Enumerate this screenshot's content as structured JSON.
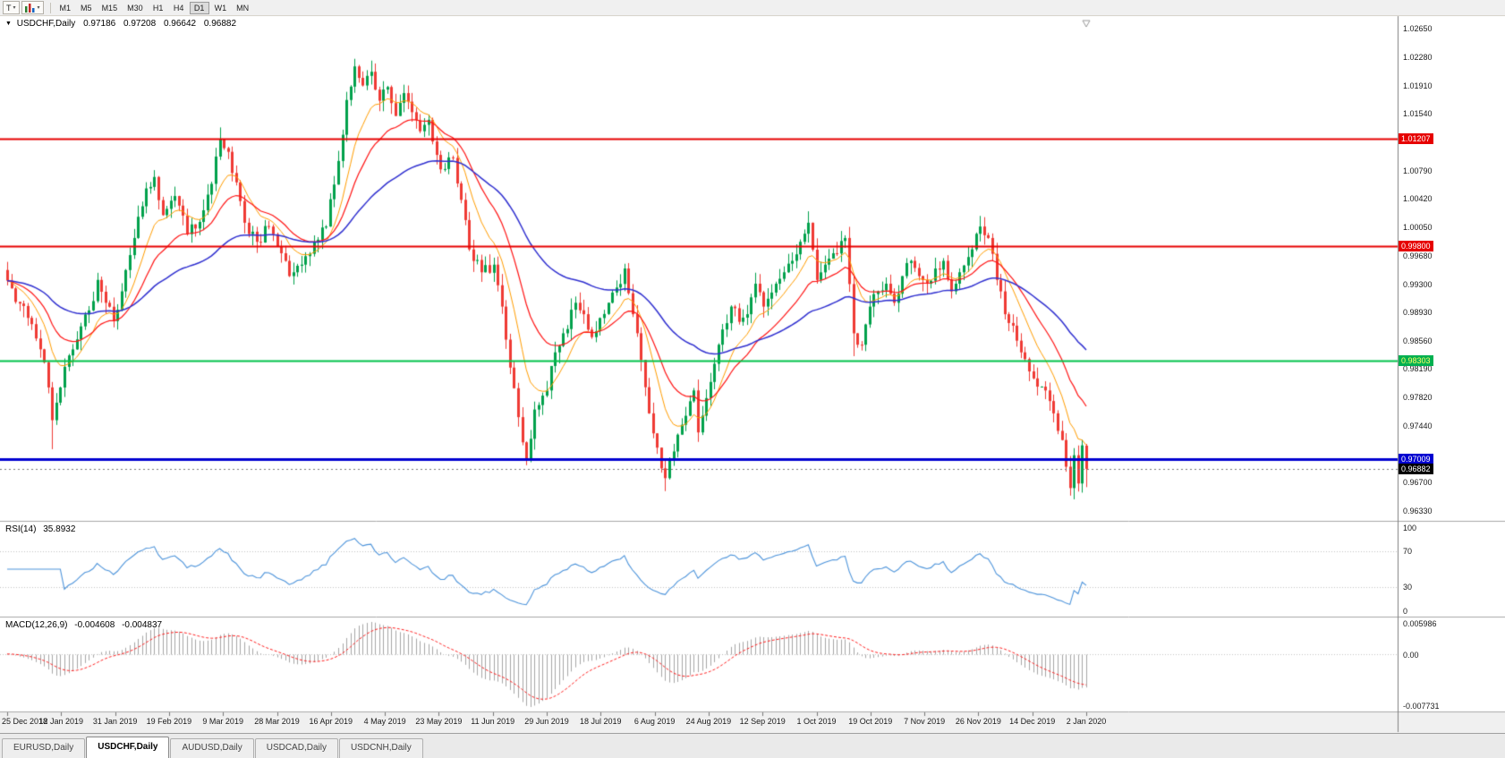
{
  "window": {
    "background": "#f0f0f0",
    "plot_background": "#ffffff"
  },
  "toolbar": {
    "templates_button_label": "T",
    "chevron_down": "▾",
    "timeframes": [
      "M1",
      "M5",
      "M15",
      "M30",
      "H1",
      "H4",
      "D1",
      "W1",
      "MN"
    ],
    "active_timeframe": "D1"
  },
  "chart": {
    "header": {
      "marker": "▼",
      "symbol": "USDCHF,Daily",
      "open": "0.97186",
      "high": "0.97208",
      "low": "0.96642",
      "close": "0.96882"
    },
    "price_axis_labels": [
      "1.02650",
      "1.02280",
      "1.01910",
      "1.01540",
      "1.00790",
      "1.00420",
      "1.00050",
      "0.99680",
      "0.99300",
      "0.98930",
      "0.98560",
      "0.98190",
      "0.97820",
      "0.97440",
      "0.96700",
      "0.96330"
    ],
    "price_tags": [
      {
        "value": "1.01207",
        "price": 1.01207,
        "bg": "#e60000",
        "text": "#ffffff",
        "line_color": "#e60000",
        "line_width": 2
      },
      {
        "value": "0.99800",
        "price": 0.998,
        "bg": "#e60000",
        "text": "#ffffff",
        "line_color": "#e60000",
        "line_width": 2
      },
      {
        "value": "0.98303",
        "price": 0.98303,
        "bg": "#00b050",
        "text": "#ffff66",
        "line_color": "#00c24a",
        "line_width": 2
      },
      {
        "value": "0.97009",
        "price": 0.97009,
        "bg": "#0000d0",
        "text": "#ffffff",
        "line_color": "#0000d0",
        "line_width": 3
      },
      {
        "value": "0.96882",
        "price": 0.96882,
        "bg": "#000000",
        "text": "#ffffff",
        "line_color": "#777777",
        "line_width": 1,
        "current": true
      }
    ],
    "date_axis_labels": [
      "25 Dec 2018",
      "12 Jan 2019",
      "31 Jan 2019",
      "19 Feb 2019",
      "9 Mar 2019",
      "28 Mar 2019",
      "16 Apr 2019",
      "4 May 2019",
      "23 May 2019",
      "11 Jun 2019",
      "29 Jun 2019",
      "18 Jul 2019",
      "6 Aug 2019",
      "24 Aug 2019",
      "12 Sep 2019",
      "1 Oct 2019",
      "19 Oct 2019",
      "7 Nov 2019",
      "26 Nov 2019",
      "14 Dec 2019",
      "2 Jan 2020"
    ]
  },
  "indicators": {
    "rsi": {
      "label": "RSI(14)",
      "value": "35.8932",
      "period": 14,
      "levels": [
        100,
        70,
        30,
        0
      ],
      "level_lines": [
        70,
        30
      ],
      "color": "#4d94db"
    },
    "macd": {
      "label": "MACD(12,26,9)",
      "macd_value": "-0.004608",
      "signal_value": "-0.004837",
      "fast": 12,
      "slow": 26,
      "signal": 9,
      "axis_labels": [
        "0.005986",
        "0.00",
        "-0.007731"
      ],
      "histogram_color": "#a6a6a6",
      "signal_color": "#ff2020"
    }
  },
  "chart_data": {
    "type": "candlestick",
    "title": "USDCHF Daily",
    "bars": 265,
    "price_min": 0.962,
    "price_max": 1.0282,
    "sr_levels": [
      1.01207,
      0.998,
      0.98303,
      0.97009
    ],
    "current_price": 0.96882,
    "last_bar": {
      "open": 0.97186,
      "high": 0.97208,
      "low": 0.96642,
      "close": 0.96882
    },
    "colors": {
      "up": "#00a14b",
      "down": "#ef3a34"
    },
    "moving_averages": [
      {
        "period": 10,
        "color": "#ff9d00",
        "width": 1
      },
      {
        "period": 21,
        "color": "#ff1414",
        "width": 1.2
      },
      {
        "period": 55,
        "color": "#3030d0",
        "width": 1.5
      }
    ],
    "seed": 20190101,
    "anchors": [
      [
        0,
        0.9935
      ],
      [
        3,
        0.9905
      ],
      [
        6,
        0.9878
      ],
      [
        8,
        0.9845
      ],
      [
        10,
        0.9795
      ],
      [
        11,
        0.9752
      ],
      [
        12,
        0.9775
      ],
      [
        14,
        0.9822
      ],
      [
        17,
        0.9858
      ],
      [
        20,
        0.9896
      ],
      [
        22,
        0.9936
      ],
      [
        24,
        0.9906
      ],
      [
        26,
        0.9882
      ],
      [
        28,
        0.9921
      ],
      [
        31,
        0.9991
      ],
      [
        34,
        1.0056
      ],
      [
        36,
        1.0071
      ],
      [
        38,
        1.0021
      ],
      [
        41,
        1.0046
      ],
      [
        44,
        0.9996
      ],
      [
        47,
        1.0012
      ],
      [
        50,
        1.0062
      ],
      [
        52,
        1.0121
      ],
      [
        54,
        1.0104
      ],
      [
        56,
        1.0064
      ],
      [
        58,
        1.0011
      ],
      [
        61,
        0.9986
      ],
      [
        64,
        1.0006
      ],
      [
        67,
        0.9971
      ],
      [
        69,
        0.9941
      ],
      [
        72,
        0.9956
      ],
      [
        75,
        0.9986
      ],
      [
        78,
        1.0006
      ],
      [
        81,
        1.0092
      ],
      [
        83,
        1.0172
      ],
      [
        85,
        1.0216
      ],
      [
        87,
        1.0191
      ],
      [
        89,
        1.0209
      ],
      [
        91,
        1.0171
      ],
      [
        93,
        1.0189
      ],
      [
        95,
        1.0151
      ],
      [
        97,
        1.0181
      ],
      [
        99,
        1.0156
      ],
      [
        101,
        1.0131
      ],
      [
        103,
        1.0146
      ],
      [
        106,
        1.0081
      ],
      [
        109,
        1.0096
      ],
      [
        111,
        1.0041
      ],
      [
        113,
        0.9976
      ],
      [
        116,
        0.9946
      ],
      [
        119,
        0.9956
      ],
      [
        121,
        0.9901
      ],
      [
        123,
        0.9821
      ],
      [
        125,
        0.9756
      ],
      [
        127,
        0.9701
      ],
      [
        129,
        0.9766
      ],
      [
        132,
        0.9791
      ],
      [
        134,
        0.9841
      ],
      [
        136,
        0.9866
      ],
      [
        139,
        0.9906
      ],
      [
        141,
        0.9891
      ],
      [
        143,
        0.9861
      ],
      [
        145,
        0.9886
      ],
      [
        147,
        0.9906
      ],
      [
        149,
        0.9926
      ],
      [
        151,
        0.9951
      ],
      [
        153,
        0.9891
      ],
      [
        155,
        0.9831
      ],
      [
        157,
        0.9761
      ],
      [
        159,
        0.9716
      ],
      [
        161,
        0.9676
      ],
      [
        163,
        0.9711
      ],
      [
        165,
        0.9746
      ],
      [
        168,
        0.9791
      ],
      [
        169,
        0.9736
      ],
      [
        171,
        0.9781
      ],
      [
        173,
        0.9826
      ],
      [
        175,
        0.9871
      ],
      [
        177,
        0.9901
      ],
      [
        179,
        0.9881
      ],
      [
        181,
        0.9891
      ],
      [
        183,
        0.9931
      ],
      [
        185,
        0.9901
      ],
      [
        188,
        0.9931
      ],
      [
        190,
        0.9946
      ],
      [
        192,
        0.9961
      ],
      [
        194,
        0.9986
      ],
      [
        196,
        1.0011
      ],
      [
        198,
        0.9936
      ],
      [
        200,
        0.9956
      ],
      [
        202,
        0.9971
      ],
      [
        205,
        0.9991
      ],
      [
        207,
        0.9866
      ],
      [
        209,
        0.9851
      ],
      [
        211,
        0.9901
      ],
      [
        213,
        0.9921
      ],
      [
        215,
        0.9931
      ],
      [
        217,
        0.9906
      ],
      [
        219,
        0.9941
      ],
      [
        221,
        0.9961
      ],
      [
        223,
        0.9941
      ],
      [
        225,
        0.9931
      ],
      [
        227,
        0.9951
      ],
      [
        229,
        0.9961
      ],
      [
        231,
        0.9921
      ],
      [
        233,
        0.9946
      ],
      [
        235,
        0.9966
      ],
      [
        238,
        1.0006
      ],
      [
        240,
        0.9991
      ],
      [
        242,
        0.9936
      ],
      [
        244,
        0.9891
      ],
      [
        246,
        0.9876
      ],
      [
        248,
        0.9841
      ],
      [
        250,
        0.9816
      ],
      [
        252,
        0.9796
      ],
      [
        254,
        0.9791
      ],
      [
        256,
        0.9761
      ],
      [
        258,
        0.9726
      ],
      [
        259,
        0.9691
      ],
      [
        260,
        0.9663
      ],
      [
        261,
        0.9706
      ],
      [
        262,
        0.9669
      ],
      [
        263,
        0.9719
      ],
      [
        264,
        0.96882
      ]
    ],
    "wick_events": [
      {
        "i": 11,
        "low": 0.9714
      },
      {
        "i": 52,
        "high": 1.0136
      },
      {
        "i": 85,
        "high": 1.0226
      },
      {
        "i": 127,
        "low": 0.9693
      },
      {
        "i": 161,
        "low": 0.9659
      },
      {
        "i": 196,
        "high": 1.0026
      },
      {
        "i": 207,
        "low": 0.9836
      },
      {
        "i": 260,
        "low": 0.9659
      }
    ]
  },
  "tabs": [
    {
      "label": "EURUSD,Daily",
      "active": false
    },
    {
      "label": "USDCHF,Daily",
      "active": true
    },
    {
      "label": "AUDUSD,Daily",
      "active": false
    },
    {
      "label": "USDCAD,Daily",
      "active": false
    },
    {
      "label": "USDCNH,Daily",
      "active": false
    }
  ]
}
